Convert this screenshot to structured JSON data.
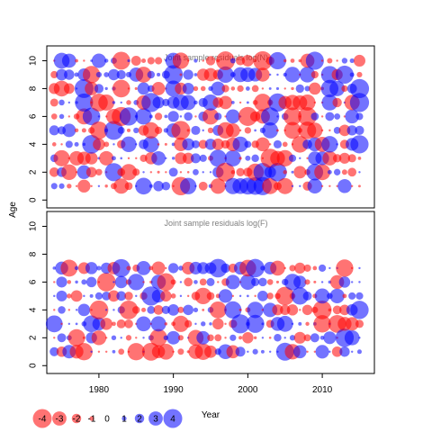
{
  "chart_data": {
    "type": "scatter",
    "subtype": "bubble-residual-plot",
    "shared_y_label": "Age",
    "x_label": "Year",
    "xlim": [
      1973,
      2017
    ],
    "x_ticks": [
      1980,
      1990,
      2000,
      2010
    ],
    "panels": [
      {
        "title": "Joint sample residuals log(N)",
        "ylim": [
          -0.5,
          11
        ],
        "y_ticks": [
          0,
          2,
          4,
          6,
          8,
          10
        ],
        "ages": [
          1,
          2,
          3,
          4,
          5,
          6,
          7,
          8,
          9,
          10
        ],
        "years": [
          1974,
          2015
        ]
      },
      {
        "title": "Joint sample residuals log(F)",
        "ylim": [
          -0.5,
          11
        ],
        "y_ticks": [
          0,
          2,
          4,
          6,
          8,
          10
        ],
        "ages": [
          1,
          2,
          3,
          4,
          5,
          6,
          7
        ],
        "years": [
          1974,
          2015
        ]
      }
    ],
    "legend": {
      "placement": "bottom-left",
      "values": [
        -4,
        -3,
        -2,
        -1,
        0,
        1,
        2,
        3,
        4
      ],
      "labels": [
        "-4",
        "-3",
        "-2",
        "-1",
        "0",
        "1",
        "2",
        "3",
        "4"
      ]
    },
    "colors": {
      "negative": "#ff0000",
      "positive": "#0000ff",
      "bubble_opacity": 0.55,
      "frame": "#000000",
      "title": "#808080"
    }
  }
}
